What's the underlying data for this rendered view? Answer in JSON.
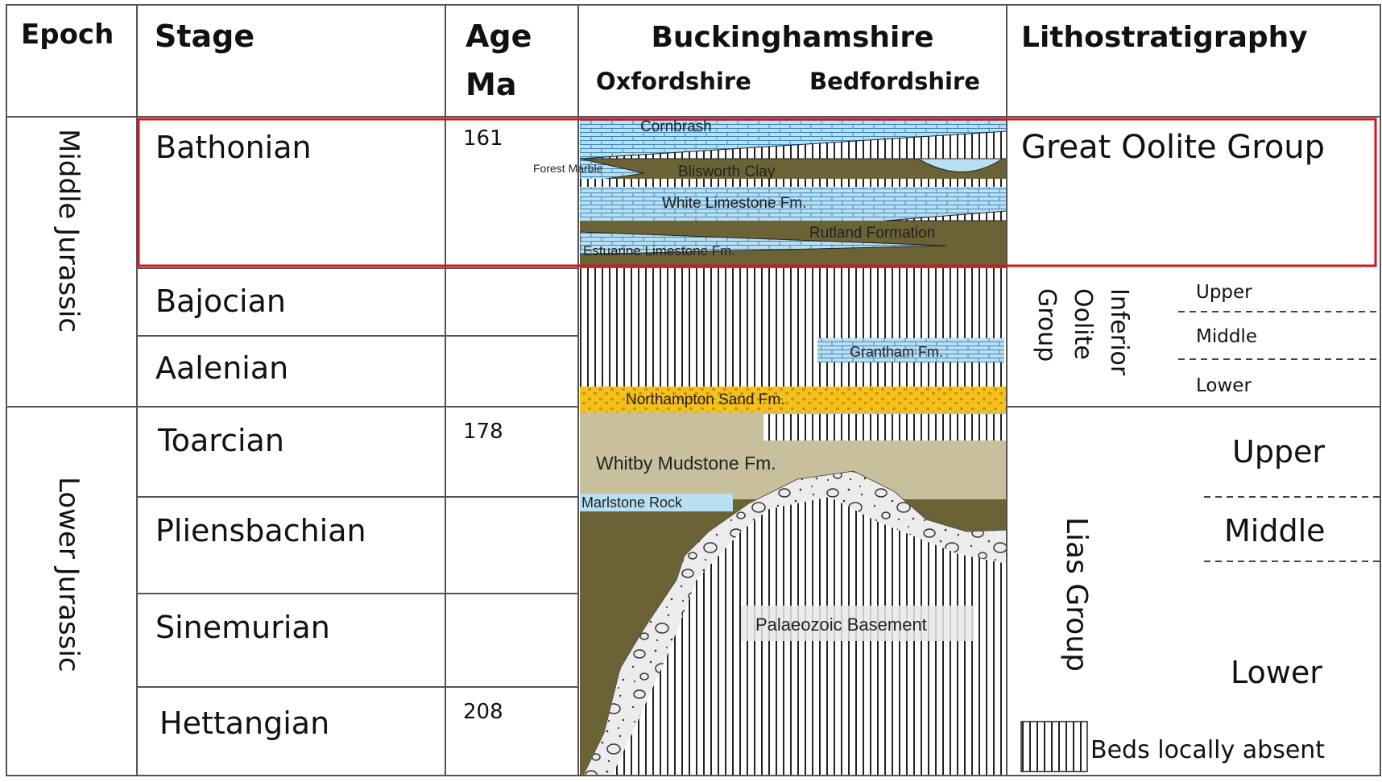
{
  "headers": {
    "epoch": "Epoch",
    "stage": "Stage",
    "age_line1": "Age",
    "age_line2": "Ma",
    "region_title": "Buckinghamshire",
    "region_left": "Oxfordshire",
    "region_right": "Bedfordshire",
    "litho": "Lithostratigraphy"
  },
  "epochs": {
    "middle": "Middle Jurassic",
    "lower": "Lower Jurassic"
  },
  "stages": {
    "bathonian": "Bathonian",
    "bajocian": "Bajocian",
    "aalenian": "Aalenian",
    "toarcian": "Toarcian",
    "pliensbachian": "Pliensbachian",
    "sinemurian": "Sinemurian",
    "hettangian": "Hettangian"
  },
  "ages": {
    "bathonian": "161",
    "toarcian": "178",
    "hettangian": "208"
  },
  "formations": {
    "cornbrash": "Cornbrash",
    "forest_marble": "Forest Marble",
    "blisworth_clay": "Blisworth Clay",
    "white_limestone": "White Limestone Fm.",
    "rutland": "Rutland Formation",
    "estuarine_limestone": "Estuarine Limestone Fm.",
    "grantham": "Grantham Fm.",
    "northampton_sand": "Northampton Sand Fm.",
    "whitby_mudstone": "Whitby Mudstone Fm.",
    "marlstone_rock": "Marlstone Rock",
    "palaeozoic_basement": "Palaeozoic Basement"
  },
  "litho": {
    "great_oolite": "Great Oolite Group",
    "inferior_line1": "Inferior",
    "inferior_line2": "Oolite",
    "inferior_line3": "Group",
    "inferior_upper": "Upper",
    "inferior_middle": "Middle",
    "inferior_lower": "Lower",
    "lias": "Lias Group",
    "lias_upper": "Upper",
    "lias_middle": "Middle",
    "lias_lower": "Lower"
  },
  "legend": {
    "beds_absent": "Beds locally absent"
  },
  "colors": {
    "highlight": "#d8121e",
    "limestone": "#b9dff2",
    "clay": "#6b6335",
    "mudstone": "#c8c09c",
    "sand": "#f3c21a",
    "sand_dot": "#d98a10"
  }
}
